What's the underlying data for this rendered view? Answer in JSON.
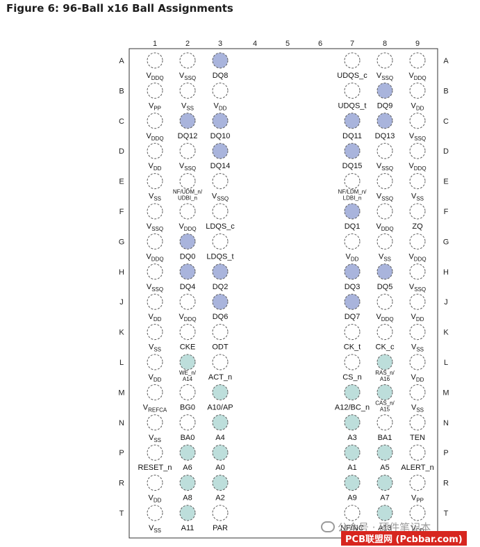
{
  "title": "Figure 6: 96-Ball x16 Ball Assignments",
  "watermark": "公众号 · 硬件笔记本",
  "watermark2": "PCB联盟网 (Pcbbar.com)",
  "columns": [
    "1",
    "2",
    "3",
    "4",
    "5",
    "6",
    "7",
    "8",
    "9"
  ],
  "rows": [
    "A",
    "B",
    "C",
    "D",
    "E",
    "F",
    "G",
    "H",
    "J",
    "K",
    "L",
    "M",
    "N",
    "P",
    "R",
    "T"
  ],
  "colors": {
    "data": "#a9b4dc",
    "addr": "#bddedb",
    "empty": "#ffffff",
    "stroke": "#5a5a5a"
  },
  "balls": [
    {
      "row": "A",
      "col": 1,
      "label": [
        "V",
        "DDQ"
      ],
      "type": "empty"
    },
    {
      "row": "A",
      "col": 2,
      "label": [
        "V",
        "SSQ"
      ],
      "type": "empty"
    },
    {
      "row": "A",
      "col": 3,
      "label": [
        "DQ8"
      ],
      "type": "data"
    },
    {
      "row": "A",
      "col": 7,
      "label": [
        "UDQS_c"
      ],
      "type": "empty"
    },
    {
      "row": "A",
      "col": 8,
      "label": [
        "V",
        "SSQ"
      ],
      "type": "empty"
    },
    {
      "row": "A",
      "col": 9,
      "label": [
        "V",
        "DDQ"
      ],
      "type": "empty"
    },
    {
      "row": "B",
      "col": 1,
      "label": [
        "V",
        "PP"
      ],
      "type": "empty"
    },
    {
      "row": "B",
      "col": 2,
      "label": [
        "V",
        "SS"
      ],
      "type": "empty"
    },
    {
      "row": "B",
      "col": 3,
      "label": [
        "V",
        "DD"
      ],
      "type": "empty"
    },
    {
      "row": "B",
      "col": 7,
      "label": [
        "UDQS_t"
      ],
      "type": "empty"
    },
    {
      "row": "B",
      "col": 8,
      "label": [
        "DQ9"
      ],
      "type": "data"
    },
    {
      "row": "B",
      "col": 9,
      "label": [
        "V",
        "DD"
      ],
      "type": "empty"
    },
    {
      "row": "C",
      "col": 1,
      "label": [
        "V",
        "DDQ"
      ],
      "type": "empty"
    },
    {
      "row": "C",
      "col": 2,
      "label": [
        "DQ12"
      ],
      "type": "data"
    },
    {
      "row": "C",
      "col": 3,
      "label": [
        "DQ10"
      ],
      "type": "data"
    },
    {
      "row": "C",
      "col": 7,
      "label": [
        "DQ11"
      ],
      "type": "data"
    },
    {
      "row": "C",
      "col": 8,
      "label": [
        "DQ13"
      ],
      "type": "data"
    },
    {
      "row": "C",
      "col": 9,
      "label": [
        "V",
        "SSQ"
      ],
      "type": "empty"
    },
    {
      "row": "D",
      "col": 1,
      "label": [
        "V",
        "DD"
      ],
      "type": "empty"
    },
    {
      "row": "D",
      "col": 2,
      "label": [
        "V",
        "SSQ"
      ],
      "type": "empty"
    },
    {
      "row": "D",
      "col": 3,
      "label": [
        "DQ14"
      ],
      "type": "data"
    },
    {
      "row": "D",
      "col": 7,
      "label": [
        "DQ15"
      ],
      "type": "data"
    },
    {
      "row": "D",
      "col": 8,
      "label": [
        "V",
        "SSQ"
      ],
      "type": "empty"
    },
    {
      "row": "D",
      "col": 9,
      "label": [
        "V",
        "DDQ"
      ],
      "type": "empty"
    },
    {
      "row": "E",
      "col": 1,
      "label": [
        "V",
        "SS"
      ],
      "type": "empty"
    },
    {
      "row": "E",
      "col": 2,
      "label": [
        "NF/UDM_n/",
        "UDBI_n"
      ],
      "small": true,
      "type": "empty"
    },
    {
      "row": "E",
      "col": 3,
      "label": [
        "V",
        "SSQ"
      ],
      "type": "empty"
    },
    {
      "row": "E",
      "col": 7,
      "label": [
        "NF/LDM_n/",
        "LDBI_n"
      ],
      "small": true,
      "type": "empty"
    },
    {
      "row": "E",
      "col": 8,
      "label": [
        "V",
        "SSQ"
      ],
      "type": "empty"
    },
    {
      "row": "E",
      "col": 9,
      "label": [
        "V",
        "SS"
      ],
      "type": "empty"
    },
    {
      "row": "F",
      "col": 1,
      "label": [
        "V",
        "SSQ"
      ],
      "type": "empty"
    },
    {
      "row": "F",
      "col": 2,
      "label": [
        "V",
        "DDQ"
      ],
      "type": "empty"
    },
    {
      "row": "F",
      "col": 3,
      "label": [
        "LDQS_c"
      ],
      "type": "empty"
    },
    {
      "row": "F",
      "col": 7,
      "label": [
        "DQ1"
      ],
      "type": "data"
    },
    {
      "row": "F",
      "col": 8,
      "label": [
        "V",
        "DDQ"
      ],
      "type": "empty"
    },
    {
      "row": "F",
      "col": 9,
      "label": [
        "ZQ"
      ],
      "type": "empty"
    },
    {
      "row": "G",
      "col": 1,
      "label": [
        "V",
        "DDQ"
      ],
      "type": "empty"
    },
    {
      "row": "G",
      "col": 2,
      "label": [
        "DQ0"
      ],
      "type": "data"
    },
    {
      "row": "G",
      "col": 3,
      "label": [
        "LDQS_t"
      ],
      "type": "empty"
    },
    {
      "row": "G",
      "col": 7,
      "label": [
        "V",
        "DD"
      ],
      "type": "empty"
    },
    {
      "row": "G",
      "col": 8,
      "label": [
        "V",
        "SS"
      ],
      "type": "empty"
    },
    {
      "row": "G",
      "col": 9,
      "label": [
        "V",
        "DDQ"
      ],
      "type": "empty"
    },
    {
      "row": "H",
      "col": 1,
      "label": [
        "V",
        "SSQ"
      ],
      "type": "empty"
    },
    {
      "row": "H",
      "col": 2,
      "label": [
        "DQ4"
      ],
      "type": "data"
    },
    {
      "row": "H",
      "col": 3,
      "label": [
        "DQ2"
      ],
      "type": "data"
    },
    {
      "row": "H",
      "col": 7,
      "label": [
        "DQ3"
      ],
      "type": "data"
    },
    {
      "row": "H",
      "col": 8,
      "label": [
        "DQ5"
      ],
      "type": "data"
    },
    {
      "row": "H",
      "col": 9,
      "label": [
        "V",
        "SSQ"
      ],
      "type": "empty"
    },
    {
      "row": "J",
      "col": 1,
      "label": [
        "V",
        "DD"
      ],
      "type": "empty"
    },
    {
      "row": "J",
      "col": 2,
      "label": [
        "V",
        "DDQ"
      ],
      "type": "empty"
    },
    {
      "row": "J",
      "col": 3,
      "label": [
        "DQ6"
      ],
      "type": "data"
    },
    {
      "row": "J",
      "col": 7,
      "label": [
        "DQ7"
      ],
      "type": "data"
    },
    {
      "row": "J",
      "col": 8,
      "label": [
        "V",
        "DDQ"
      ],
      "type": "empty"
    },
    {
      "row": "J",
      "col": 9,
      "label": [
        "V",
        "DD"
      ],
      "type": "empty"
    },
    {
      "row": "K",
      "col": 1,
      "label": [
        "V",
        "SS"
      ],
      "type": "empty"
    },
    {
      "row": "K",
      "col": 2,
      "label": [
        "CKE"
      ],
      "type": "empty"
    },
    {
      "row": "K",
      "col": 3,
      "label": [
        "ODT"
      ],
      "type": "empty"
    },
    {
      "row": "K",
      "col": 7,
      "label": [
        "CK_t"
      ],
      "type": "empty"
    },
    {
      "row": "K",
      "col": 8,
      "label": [
        "CK_c"
      ],
      "type": "empty"
    },
    {
      "row": "K",
      "col": 9,
      "label": [
        "V",
        "SS"
      ],
      "type": "empty"
    },
    {
      "row": "L",
      "col": 1,
      "label": [
        "V",
        "DD"
      ],
      "type": "empty"
    },
    {
      "row": "L",
      "col": 2,
      "label": [
        "WE_n/",
        "A14"
      ],
      "small": true,
      "type": "addr"
    },
    {
      "row": "L",
      "col": 3,
      "label": [
        "ACT_n"
      ],
      "type": "empty"
    },
    {
      "row": "L",
      "col": 7,
      "label": [
        "CS_n"
      ],
      "type": "empty"
    },
    {
      "row": "L",
      "col": 8,
      "label": [
        "RAS_n/",
        "A16"
      ],
      "small": true,
      "type": "addr"
    },
    {
      "row": "L",
      "col": 9,
      "label": [
        "V",
        "DD"
      ],
      "type": "empty"
    },
    {
      "row": "M",
      "col": 1,
      "label": [
        "V",
        "REFCA"
      ],
      "type": "empty"
    },
    {
      "row": "M",
      "col": 2,
      "label": [
        "BG0"
      ],
      "type": "empty"
    },
    {
      "row": "M",
      "col": 3,
      "label": [
        "A10/AP"
      ],
      "type": "addr"
    },
    {
      "row": "M",
      "col": 7,
      "label": [
        "A12/BC_n"
      ],
      "type": "addr"
    },
    {
      "row": "M",
      "col": 8,
      "label": [
        "CAS_n/",
        "A15"
      ],
      "small": true,
      "type": "addr"
    },
    {
      "row": "M",
      "col": 9,
      "label": [
        "V",
        "SS"
      ],
      "type": "empty"
    },
    {
      "row": "N",
      "col": 1,
      "label": [
        "V",
        "SS"
      ],
      "type": "empty"
    },
    {
      "row": "N",
      "col": 2,
      "label": [
        "BA0"
      ],
      "type": "empty"
    },
    {
      "row": "N",
      "col": 3,
      "label": [
        "A4"
      ],
      "type": "addr"
    },
    {
      "row": "N",
      "col": 7,
      "label": [
        "A3"
      ],
      "type": "addr"
    },
    {
      "row": "N",
      "col": 8,
      "label": [
        "BA1"
      ],
      "type": "empty"
    },
    {
      "row": "N",
      "col": 9,
      "label": [
        "TEN"
      ],
      "type": "empty"
    },
    {
      "row": "P",
      "col": 1,
      "label": [
        "RESET_n"
      ],
      "type": "empty"
    },
    {
      "row": "P",
      "col": 2,
      "label": [
        "A6"
      ],
      "type": "addr"
    },
    {
      "row": "P",
      "col": 3,
      "label": [
        "A0"
      ],
      "type": "addr"
    },
    {
      "row": "P",
      "col": 7,
      "label": [
        "A1"
      ],
      "type": "addr"
    },
    {
      "row": "P",
      "col": 8,
      "label": [
        "A5"
      ],
      "type": "addr"
    },
    {
      "row": "P",
      "col": 9,
      "label": [
        "ALERT_n"
      ],
      "type": "empty"
    },
    {
      "row": "R",
      "col": 1,
      "label": [
        "V",
        "DD"
      ],
      "type": "empty"
    },
    {
      "row": "R",
      "col": 2,
      "label": [
        "A8"
      ],
      "type": "addr"
    },
    {
      "row": "R",
      "col": 3,
      "label": [
        "A2"
      ],
      "type": "addr"
    },
    {
      "row": "R",
      "col": 7,
      "label": [
        "A9"
      ],
      "type": "addr"
    },
    {
      "row": "R",
      "col": 8,
      "label": [
        "A7"
      ],
      "type": "addr"
    },
    {
      "row": "R",
      "col": 9,
      "label": [
        "V",
        "PP"
      ],
      "type": "empty"
    },
    {
      "row": "T",
      "col": 1,
      "label": [
        "V",
        "SS"
      ],
      "type": "empty"
    },
    {
      "row": "T",
      "col": 2,
      "label": [
        "A11"
      ],
      "type": "addr"
    },
    {
      "row": "T",
      "col": 3,
      "label": [
        "PAR"
      ],
      "type": "empty"
    },
    {
      "row": "T",
      "col": 7,
      "label": [
        "NF/NC"
      ],
      "type": "empty"
    },
    {
      "row": "T",
      "col": 8,
      "label": [
        "A13"
      ],
      "type": "addr"
    },
    {
      "row": "T",
      "col": 9,
      "label": [
        "V",
        "DD"
      ],
      "type": "empty"
    }
  ]
}
